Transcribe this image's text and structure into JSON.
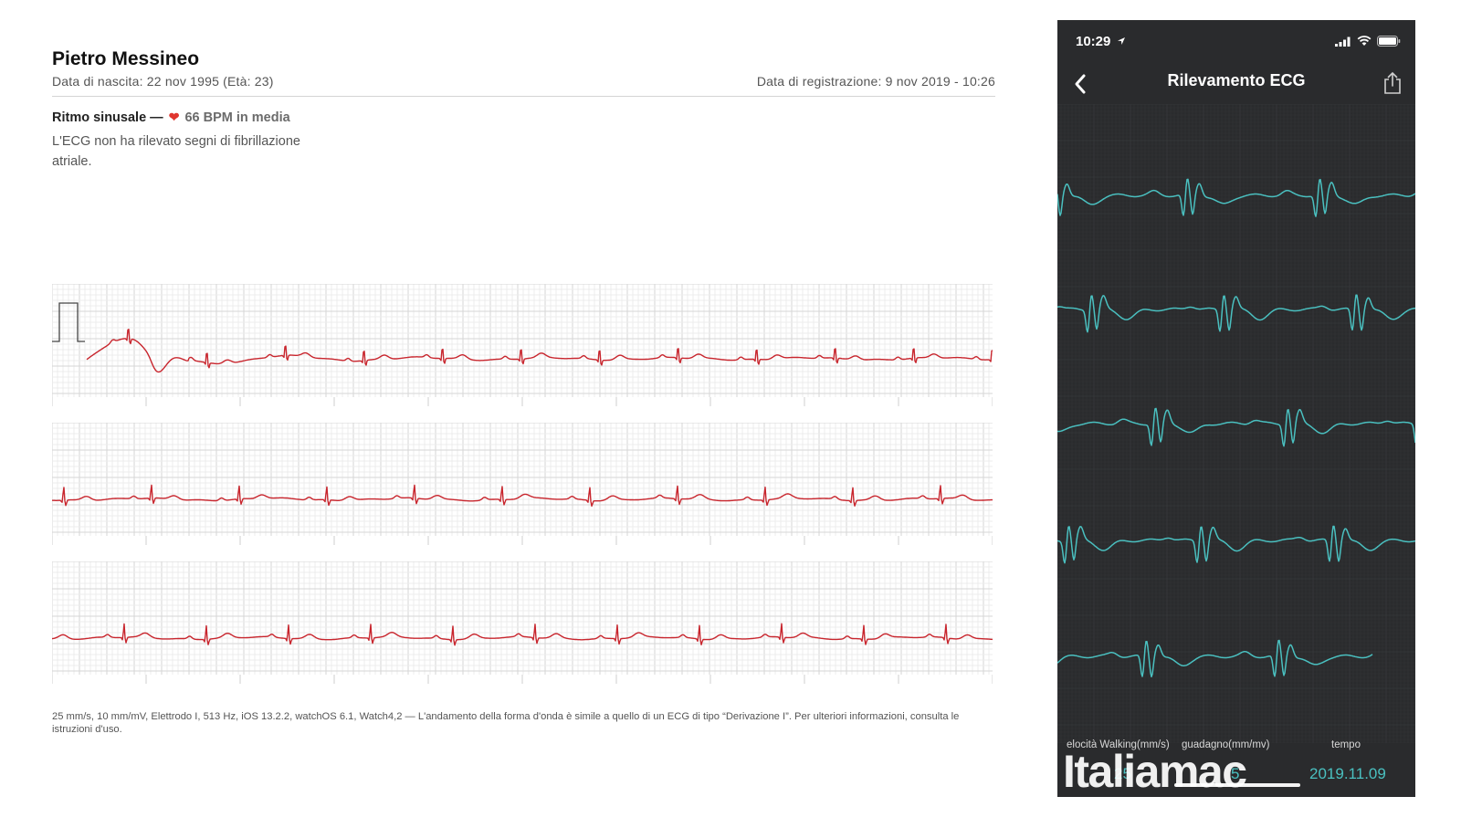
{
  "report": {
    "patient_name": "Pietro Messineo",
    "dob": "Data di nascita: 22 nov 1995 (Età: 23)",
    "registration": "Data di registrazione: 9 nov 2019 - 10:26",
    "result_label": "Ritmo sinusale —",
    "heart_icon": "heart-icon",
    "bpm_text": "66 BPM in media",
    "description": "L'ECG non ha rilevato segni di fibrillazione atriale.",
    "footnote": "25 mm/s, 10 mm/mV, Elettrodo I, 513 Hz, iOS 13.2.2, watchOS 6.1, Watch4,2 — L'andamento della forma d'onda è simile a quello di un ECG di tipo “Derivazione I”. Per ulteriori informazioni, consulta le istruzioni d'uso.",
    "colors": {
      "trace": "#c8252d",
      "grid_minor": "#ececec",
      "grid_major": "#d6d6d6",
      "heart": "#e0362f"
    }
  },
  "phone": {
    "time": "10:29",
    "title": "Rilevamento ECG",
    "back_icon": "chevron-left-icon",
    "share_icon": "share-icon",
    "status_icons": [
      "location-arrow-icon",
      "cellular-signal-icon",
      "wifi-icon",
      "battery-icon"
    ],
    "footer": {
      "speed_label": "elocità Walking(mm/s)",
      "gain_label": "guadagno(mm/mv)",
      "time_label": "tempo",
      "speed_value": "25",
      "gain_value": "5",
      "date_value": "2019.11.09"
    },
    "watermark": "Italiamac",
    "colors": {
      "background": "#2a2b2d",
      "trace": "#4ac0c0"
    }
  }
}
